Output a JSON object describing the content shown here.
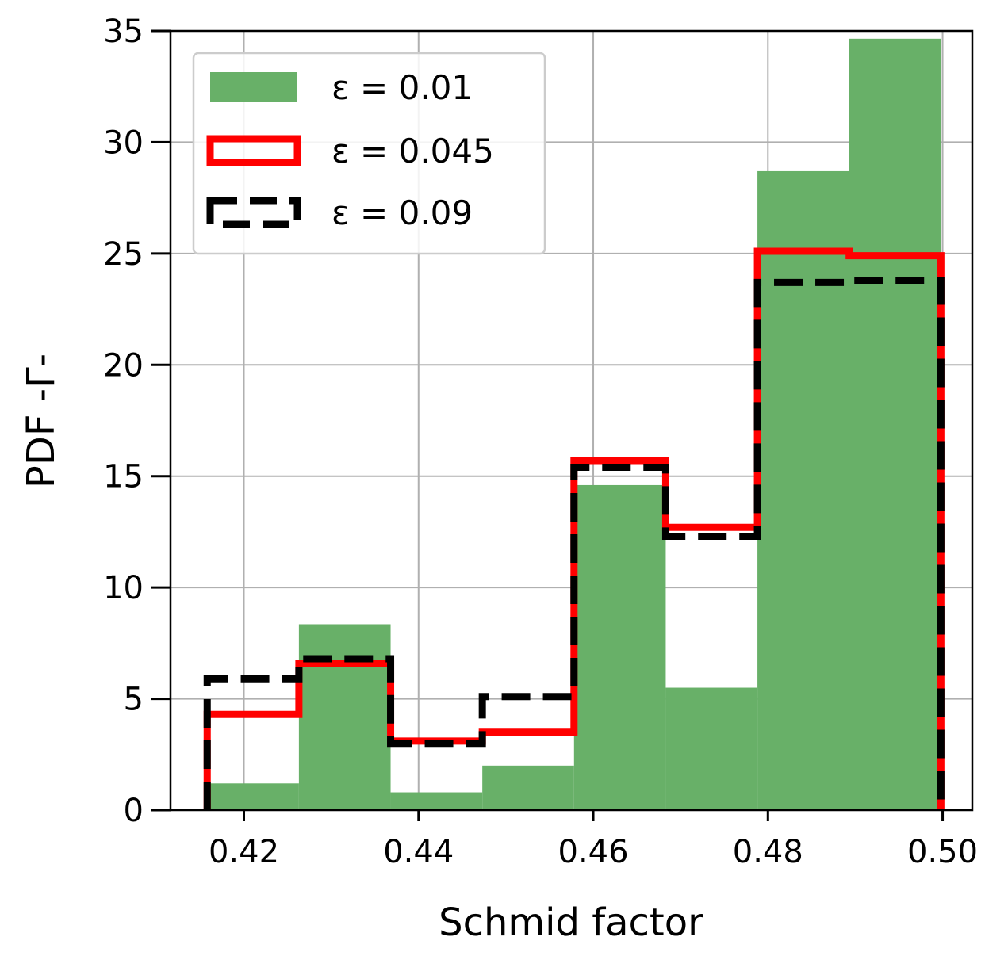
{
  "chart_data": {
    "type": "histogram",
    "xlabel": "Schmid factor",
    "ylabel": "PDF -Γ-",
    "xlim": [
      0.4116,
      0.5034
    ],
    "ylim": [
      0,
      35
    ],
    "xticks": [
      "0.42",
      "0.44",
      "0.46",
      "0.48",
      "0.50"
    ],
    "xtick_values": [
      0.42,
      0.44,
      0.46,
      0.48,
      0.5
    ],
    "yticks": [
      "0",
      "5",
      "10",
      "15",
      "20",
      "25",
      "30",
      "35"
    ],
    "ytick_values": [
      0,
      5,
      10,
      15,
      20,
      25,
      30,
      35
    ],
    "grid": true,
    "legend_position": "upper-left",
    "bin_edges": [
      0.4158,
      0.4263,
      0.4368,
      0.4473,
      0.4578,
      0.4683,
      0.4788,
      0.4893,
      0.4998
    ],
    "series": [
      {
        "name": "ε = 0.01",
        "style": "filled",
        "color": "#68b068",
        "values": [
          1.2,
          8.35,
          0.8,
          2.0,
          14.6,
          5.5,
          28.7,
          34.65
        ]
      },
      {
        "name": "ε = 0.045",
        "style": "step-solid",
        "color": "#ff0000",
        "values": [
          4.3,
          6.6,
          3.1,
          3.5,
          15.7,
          12.7,
          25.1,
          24.9
        ]
      },
      {
        "name": "ε = 0.09",
        "style": "step-dashed",
        "color": "#000000",
        "values": [
          5.9,
          6.8,
          3.0,
          5.1,
          15.4,
          12.3,
          23.7,
          23.8
        ]
      }
    ]
  }
}
